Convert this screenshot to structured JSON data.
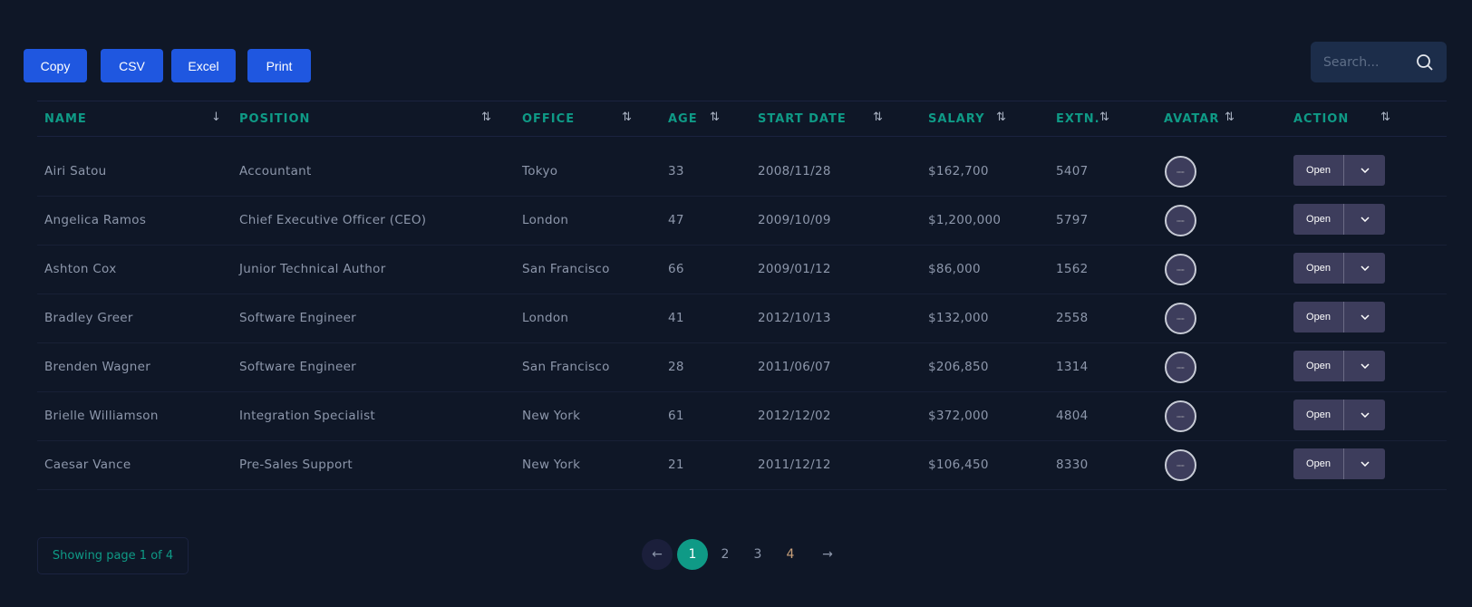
{
  "toolbar": {
    "buttons": [
      "Copy",
      "CSV",
      "Excel",
      "Print"
    ]
  },
  "search": {
    "placeholder": "Search..."
  },
  "columns": [
    "NAME",
    "POSITION",
    "OFFICE",
    "AGE",
    "START DATE",
    "SALARY",
    "EXTN.",
    "AVATAR",
    "ACTION"
  ],
  "rows": [
    {
      "name": "Airi Satou",
      "position": "Accountant",
      "office": "Tokyo",
      "age": "33",
      "start": "2008/11/28",
      "salary": "$162,700",
      "extn": "5407"
    },
    {
      "name": "Angelica Ramos",
      "position": "Chief Executive Officer (CEO)",
      "office": "London",
      "age": "47",
      "start": "2009/10/09",
      "salary": "$1,200,000",
      "extn": "5797"
    },
    {
      "name": "Ashton Cox",
      "position": "Junior Technical Author",
      "office": "San Francisco",
      "age": "66",
      "start": "2009/01/12",
      "salary": "$86,000",
      "extn": "1562"
    },
    {
      "name": "Bradley Greer",
      "position": "Software Engineer",
      "office": "London",
      "age": "41",
      "start": "2012/10/13",
      "salary": "$132,000",
      "extn": "2558"
    },
    {
      "name": "Brenden Wagner",
      "position": "Software Engineer",
      "office": "San Francisco",
      "age": "28",
      "start": "2011/06/07",
      "salary": "$206,850",
      "extn": "1314"
    },
    {
      "name": "Brielle Williamson",
      "position": "Integration Specialist",
      "office": "New York",
      "age": "61",
      "start": "2012/12/02",
      "salary": "$372,000",
      "extn": "4804"
    },
    {
      "name": "Caesar Vance",
      "position": "Pre-Sales Support",
      "office": "New York",
      "age": "21",
      "start": "2011/12/12",
      "salary": "$106,450",
      "extn": "8330"
    }
  ],
  "action": {
    "open_label": "Open"
  },
  "pagination": {
    "info": "Showing page 1 of 4",
    "pages": [
      "1",
      "2",
      "3",
      "4"
    ],
    "current": "1"
  },
  "colors": {
    "accent": "#0f9a86",
    "button": "#1f57e0"
  }
}
